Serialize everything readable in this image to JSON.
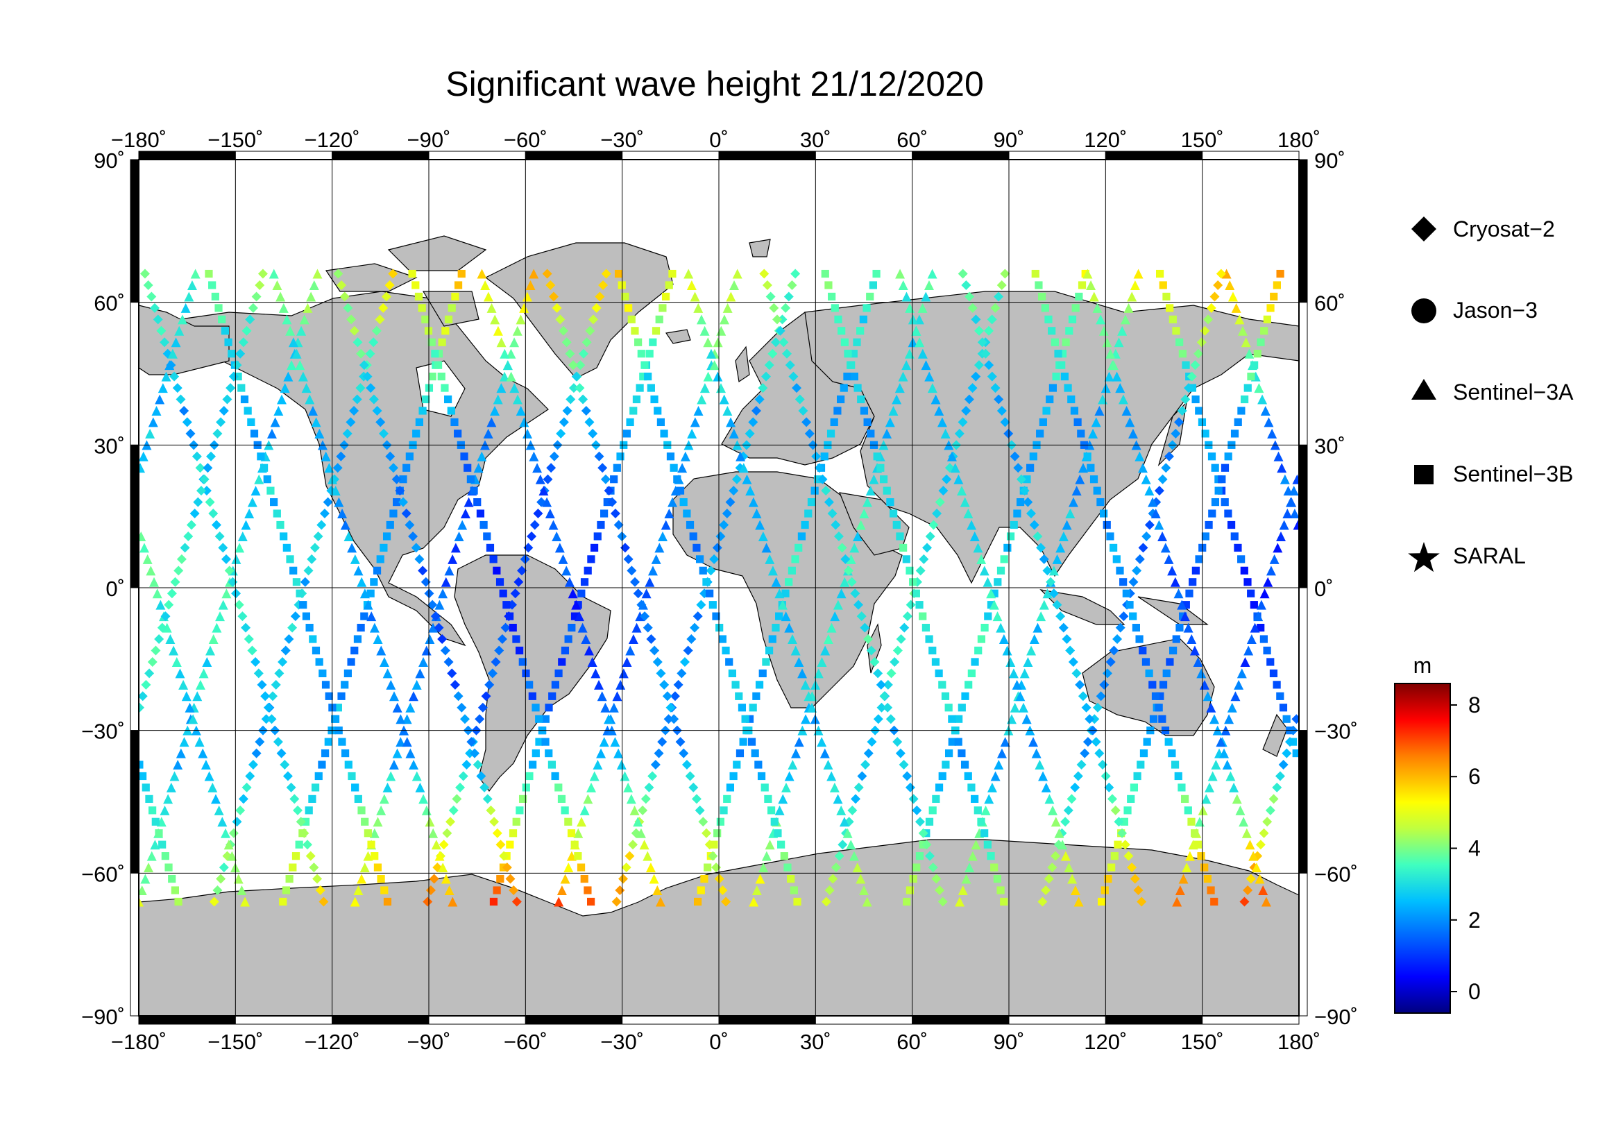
{
  "title": "Significant wave height 21/12/2020",
  "map": {
    "lon_ticks": [
      "−180˚",
      "−150˚",
      "−120˚",
      "−90˚",
      "−60˚",
      "−30˚",
      "0˚",
      "30˚",
      "60˚",
      "90˚",
      "120˚",
      "150˚",
      "180˚"
    ],
    "lat_ticks_left": [
      "90˚",
      "60˚",
      "30˚",
      "0˚",
      "−30˚",
      "−60˚",
      "−90˚"
    ],
    "lat_ticks_right": [
      "90˚",
      "60˚",
      "30˚",
      "0˚",
      "−30˚",
      "−60˚",
      "−90˚"
    ],
    "land_color": "#bebebe",
    "ocean_color": "#ffffff"
  },
  "legend": {
    "items": [
      {
        "label": "Cryosat−2",
        "symbol": "diamond"
      },
      {
        "label": "Jason−3",
        "symbol": "circle"
      },
      {
        "label": "Sentinel−3A",
        "symbol": "triangle"
      },
      {
        "label": "Sentinel−3B",
        "symbol": "square"
      },
      {
        "label": "SARAL",
        "symbol": "star"
      }
    ]
  },
  "colorbar": {
    "unit": "m",
    "ticks": [
      "8",
      "6",
      "4",
      "2",
      "0"
    ],
    "range": [
      -0.6,
      8.6
    ],
    "colormap": [
      "#00007f",
      "#0000ff",
      "#007fff",
      "#00ffff",
      "#7fff7f",
      "#ffff00",
      "#ff7f00",
      "#ff0000",
      "#7f0000"
    ]
  }
}
